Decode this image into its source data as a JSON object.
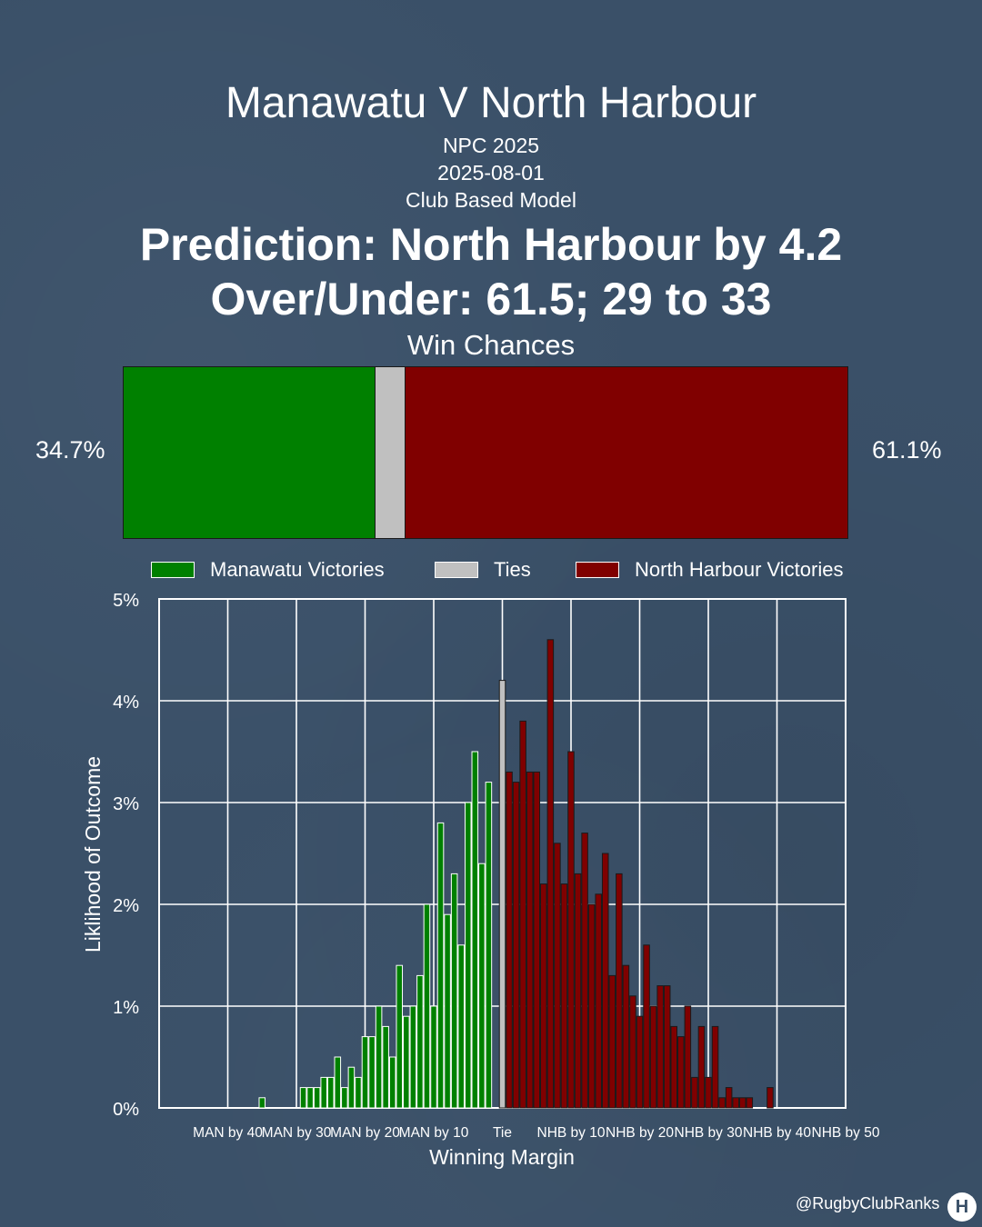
{
  "header": {
    "title": "Manawatu V North Harbour",
    "competition": "NPC 2025",
    "date": "2025-08-01",
    "model": "Club Based Model",
    "prediction": "Prediction: North Harbour by 4.2",
    "over_under": "Over/Under: 61.5; 29 to 33"
  },
  "win_chances": {
    "title": "Win Chances",
    "left_pct": "34.7%",
    "right_pct": "61.1%",
    "manawatu": 34.7,
    "tie": 4.2,
    "north_harbour": 61.1
  },
  "legend": {
    "manawatu": "Manawatu Victories",
    "tie": "Ties",
    "north_harbour": "North Harbour Victories"
  },
  "colors": {
    "background": "#3a5068",
    "manawatu": "#008000",
    "tie": "#c0c0c0",
    "north_harbour": "#800000",
    "grid": "#ffffff"
  },
  "footer": {
    "handle": "@RugbyClubRanks",
    "logo_text": "H"
  },
  "chart_data": {
    "type": "bar",
    "xlabel": "Winning Margin",
    "ylabel": "Liklihood of Outcome",
    "xlim": [
      -50,
      50
    ],
    "ylim": [
      0,
      5
    ],
    "x_ticks": [
      {
        "x": -40,
        "label": "MAN by 40"
      },
      {
        "x": -30,
        "label": "MAN by 30"
      },
      {
        "x": -20,
        "label": "MAN by 20"
      },
      {
        "x": -10,
        "label": "MAN by 10"
      },
      {
        "x": 0,
        "label": "Tie"
      },
      {
        "x": 10,
        "label": "NHB by 10"
      },
      {
        "x": 20,
        "label": "NHB by 20"
      },
      {
        "x": 30,
        "label": "NHB by 30"
      },
      {
        "x": 40,
        "label": "NHB by 40"
      },
      {
        "x": 50,
        "label": "NHB by 50"
      }
    ],
    "y_ticks": [
      {
        "y": 0,
        "label": "0%"
      },
      {
        "y": 1,
        "label": "1%"
      },
      {
        "y": 2,
        "label": "2%"
      },
      {
        "y": 3,
        "label": "3%"
      },
      {
        "y": 4,
        "label": "4%"
      },
      {
        "y": 5,
        "label": "5%"
      }
    ],
    "grid": true,
    "series": [
      {
        "name": "Manawatu Victories",
        "color": "#008000",
        "x": [
          -35,
          -29,
          -28,
          -27,
          -26,
          -25,
          -24,
          -23,
          -22,
          -21,
          -20,
          -19,
          -18,
          -17,
          -16,
          -15,
          -14,
          -13,
          -12,
          -11,
          -10,
          -9,
          -8,
          -7,
          -6,
          -5,
          -4,
          -3,
          -2,
          -1
        ],
        "values": [
          0.1,
          0.2,
          0.2,
          0.2,
          0.3,
          0.3,
          0.5,
          0.2,
          0.4,
          0.3,
          0.7,
          0.7,
          1.0,
          0.8,
          0.5,
          1.4,
          0.9,
          1.0,
          1.3,
          2.0,
          1.0,
          2.8,
          1.9,
          2.3,
          1.6,
          3.0,
          3.5,
          2.4,
          3.2,
          0
        ]
      },
      {
        "name": "Ties",
        "color": "#c0c0c0",
        "x": [
          0
        ],
        "values": [
          4.2
        ]
      },
      {
        "name": "North Harbour Victories",
        "color": "#800000",
        "x": [
          1,
          2,
          3,
          4,
          5,
          6,
          7,
          8,
          9,
          10,
          11,
          12,
          13,
          14,
          15,
          16,
          17,
          18,
          19,
          20,
          21,
          22,
          23,
          24,
          25,
          26,
          27,
          28,
          29,
          30,
          31,
          32,
          33,
          34,
          35,
          36,
          37,
          38,
          39
        ],
        "values": [
          3.3,
          3.2,
          3.8,
          3.3,
          3.3,
          2.2,
          4.6,
          2.6,
          2.2,
          3.5,
          2.3,
          2.7,
          2.0,
          2.1,
          2.5,
          1.3,
          2.3,
          1.4,
          1.1,
          0.9,
          1.6,
          1.0,
          1.2,
          1.2,
          0.8,
          0.7,
          1.0,
          0.3,
          0.8,
          0.3,
          0.8,
          0.1,
          0.2,
          0.1,
          0.1,
          0.1,
          0,
          0,
          0.2
        ]
      }
    ]
  }
}
